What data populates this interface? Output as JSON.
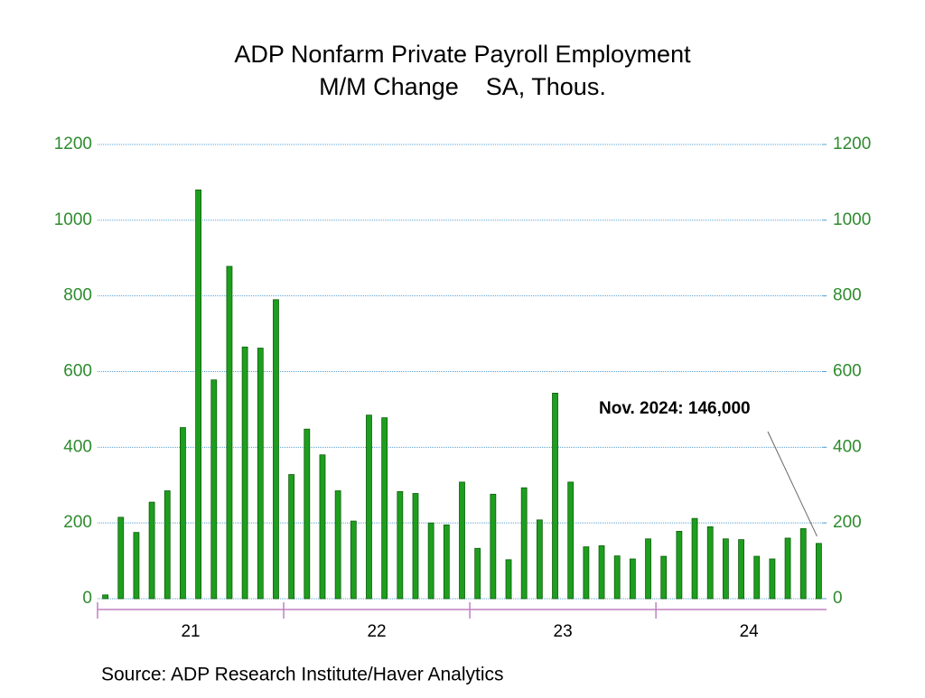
{
  "chart_data": {
    "type": "bar",
    "title": "ADP Nonfarm Private Payroll Employment",
    "subtitle": "M/M Change    SA, Thous.",
    "annotation": "Nov. 2024: 146,000",
    "source": "Source:  ADP Research Institute/Haver Analytics",
    "color": "#1e9e1e",
    "categories": [
      null,
      null,
      null,
      null,
      null,
      null,
      "21",
      null,
      null,
      null,
      null,
      null,
      null,
      null,
      null,
      null,
      null,
      null,
      "22",
      null,
      null,
      null,
      null,
      null,
      null,
      null,
      null,
      null,
      null,
      null,
      "23",
      null,
      null,
      null,
      null,
      null,
      null,
      null,
      null,
      null,
      null,
      null,
      "24",
      null,
      null,
      null,
      null
    ],
    "values": [
      10,
      215,
      175,
      255,
      285,
      452,
      1080,
      578,
      878,
      665,
      662,
      790,
      328,
      448,
      380,
      285,
      205,
      485,
      478,
      283,
      278,
      200,
      195,
      308,
      133,
      276,
      103,
      293,
      208,
      543,
      308,
      137,
      140,
      113,
      105,
      158,
      112,
      178,
      212,
      190,
      158,
      156,
      112,
      105,
      160,
      185,
      146
    ],
    "ylim": [
      0,
      1200
    ],
    "yticks": [
      0,
      200,
      400,
      600,
      800,
      1000,
      1200
    ],
    "y2lim": [
      0,
      1200
    ],
    "y2ticks": [
      0,
      200,
      400,
      600,
      800,
      1000,
      1200
    ],
    "grid": true
  }
}
